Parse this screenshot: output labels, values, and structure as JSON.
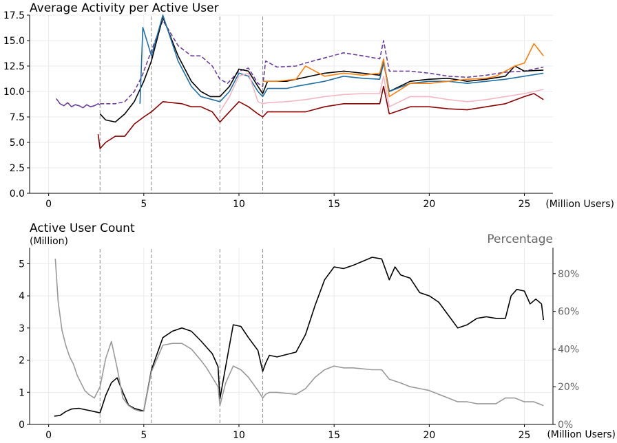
{
  "chart_data": [
    {
      "type": "line",
      "title": "Average Activity per Active User",
      "xlabel": "(Million Users)",
      "ylabel": "",
      "xlim": [
        -1,
        26.5
      ],
      "ylim": [
        0,
        17.5
      ],
      "xticks": [
        0,
        5,
        10,
        15,
        20,
        25
      ],
      "yticks": [
        0.0,
        2.5,
        5.0,
        7.5,
        10.0,
        12.5,
        15.0,
        17.5
      ],
      "ytick_labels": [
        "0.0",
        "2.5",
        "5.0",
        "7.5",
        "10.0",
        "12.5",
        "15.0",
        "17.5"
      ],
      "grid": true,
      "vertical_reference_lines_x": [
        2.7,
        5.4,
        9.0,
        11.25
      ],
      "series": [
        {
          "color": "#6a3d9a",
          "style": "solid",
          "x": [
            0.4,
            0.6,
            0.8,
            1.0,
            1.2,
            1.4,
            1.6,
            1.8,
            2.0,
            2.2,
            2.4,
            2.6,
            2.7
          ],
          "y": [
            9.3,
            8.8,
            8.6,
            8.9,
            8.5,
            8.7,
            8.6,
            8.4,
            8.7,
            8.5,
            8.6,
            8.8,
            8.7
          ]
        },
        {
          "color": "#6a3d9a",
          "style": "dashed",
          "x": [
            2.7,
            3.5,
            4.0,
            4.5,
            4.9,
            5.4,
            6.0,
            6.8,
            7.5,
            8.0,
            8.6,
            9.0,
            9.4,
            10.0,
            10.5,
            11.0,
            11.25,
            11.4,
            12.0,
            13.0,
            13.5,
            14.5,
            15.5,
            16.5,
            17.4,
            17.6,
            17.9,
            19.0,
            20.0,
            21.0,
            22.0,
            23.0,
            24.0,
            25.0,
            26.0
          ],
          "y": [
            8.8,
            8.8,
            9.0,
            10.0,
            11.5,
            14.0,
            17.0,
            14.5,
            13.5,
            13.5,
            12.5,
            11.2,
            10.8,
            12.0,
            12.3,
            10.8,
            10.5,
            13.0,
            12.4,
            12.5,
            12.8,
            13.3,
            13.8,
            13.5,
            13.2,
            15.0,
            12.0,
            12.0,
            11.8,
            11.5,
            11.4,
            11.6,
            11.9,
            12.0,
            12.4
          ]
        },
        {
          "color": "#000000",
          "style": "solid",
          "x": [
            2.7,
            3.0,
            3.5,
            4.0,
            4.5,
            5.0,
            5.4,
            6.0,
            6.8,
            7.5,
            8.0,
            8.5,
            9.0,
            9.5,
            10.0,
            10.5,
            11.0,
            11.25,
            11.5,
            12.5,
            13.0,
            14.5,
            15.5,
            16.5,
            17.4,
            17.6,
            17.9,
            19.0,
            20.0,
            21.0,
            22.0,
            23.0,
            24.0,
            24.5,
            25.0,
            26.0
          ],
          "y": [
            7.8,
            7.2,
            7.0,
            7.8,
            9.0,
            11.0,
            13.0,
            17.3,
            13.5,
            11.0,
            10.0,
            9.5,
            9.5,
            10.5,
            12.2,
            12.0,
            10.5,
            9.8,
            11.0,
            11.0,
            11.2,
            11.8,
            12.0,
            11.8,
            11.6,
            13.0,
            10.0,
            11.0,
            11.2,
            11.3,
            11.0,
            11.2,
            11.5,
            12.5,
            12.0,
            12.1
          ]
        },
        {
          "color": "#1f6fa5",
          "style": "solid",
          "x": [
            4.8,
            4.95,
            5.4,
            6.0,
            6.8,
            7.5,
            8.0,
            8.6,
            9.0,
            9.5,
            10.0,
            10.5,
            11.0,
            11.25,
            11.5,
            12.5,
            13.0,
            14.5,
            15.5,
            16.5,
            17.4,
            17.6,
            17.9,
            19.0,
            20.0,
            21.0,
            22.0,
            23.0,
            24.0,
            25.0,
            26.0
          ],
          "y": [
            8.8,
            16.3,
            13.5,
            17.5,
            13.0,
            10.5,
            9.5,
            9.2,
            9.0,
            10.0,
            11.8,
            11.5,
            10.0,
            9.5,
            10.3,
            10.3,
            10.5,
            11.0,
            11.5,
            11.3,
            11.2,
            12.8,
            10.0,
            10.8,
            11.0,
            11.0,
            10.8,
            11.0,
            11.2,
            11.5,
            11.8
          ]
        },
        {
          "color": "#ff7f0e",
          "style": "solid",
          "x": [
            11.25,
            12.0,
            13.0,
            13.5,
            14.5,
            15.5,
            16.5,
            17.4,
            17.6,
            17.9,
            19.0,
            20.0,
            21.0,
            22.0,
            23.0,
            23.5,
            24.0,
            24.5,
            25.0,
            25.5,
            26.0
          ],
          "y": [
            11.0,
            11.0,
            11.2,
            12.5,
            11.5,
            11.8,
            11.6,
            11.8,
            13.2,
            9.5,
            10.8,
            10.8,
            11.0,
            11.2,
            11.3,
            11.5,
            12.0,
            12.5,
            12.8,
            14.7,
            13.5
          ]
        },
        {
          "color": "#f4b6c2",
          "style": "solid",
          "x": [
            9.0,
            9.5,
            10.0,
            10.5,
            11.0,
            11.25,
            11.5,
            12.5,
            13.5,
            14.5,
            15.5,
            16.5,
            17.4,
            17.6,
            17.9,
            19.0,
            20.0,
            21.0,
            22.0,
            23.0,
            24.0,
            25.0,
            26.0
          ],
          "y": [
            8.0,
            9.5,
            11.5,
            11.8,
            9.0,
            8.8,
            8.9,
            9.0,
            9.2,
            9.5,
            9.7,
            9.8,
            9.8,
            11.5,
            8.5,
            9.5,
            9.5,
            9.2,
            9.0,
            9.2,
            9.5,
            9.8,
            10.2
          ]
        },
        {
          "color": "#8b0000",
          "style": "solid",
          "x": [
            2.6,
            2.7,
            3.0,
            3.5,
            4.0,
            4.5,
            5.0,
            5.4,
            6.0,
            7.0,
            7.5,
            8.0,
            8.6,
            9.0,
            9.5,
            10.0,
            10.5,
            11.0,
            11.25,
            11.5,
            12.5,
            13.5,
            14.5,
            15.5,
            16.5,
            17.4,
            17.6,
            17.9,
            19.0,
            20.0,
            21.0,
            22.0,
            23.0,
            24.0,
            25.0,
            25.5,
            26.0
          ],
          "y": [
            5.8,
            4.4,
            5.0,
            5.6,
            5.6,
            6.8,
            7.5,
            8.0,
            9.0,
            8.8,
            8.5,
            8.5,
            8.0,
            7.0,
            8.0,
            9.0,
            8.5,
            7.8,
            7.5,
            8.0,
            8.0,
            8.0,
            8.5,
            8.8,
            8.8,
            8.8,
            10.5,
            7.8,
            8.5,
            8.5,
            8.3,
            8.2,
            8.5,
            8.8,
            9.5,
            9.8,
            9.2
          ]
        }
      ]
    },
    {
      "type": "line",
      "title": "Active User Count",
      "subtitle": "(Million)",
      "xlabel": "(Million Users)",
      "ylabel": "",
      "xlim": [
        -1,
        26.5
      ],
      "ylim": [
        0,
        5.5
      ],
      "xticks": [
        0,
        5,
        10,
        15,
        20,
        25
      ],
      "yticks": [
        0,
        1,
        2,
        3,
        4,
        5
      ],
      "secondary_axis": {
        "title": "Percentage",
        "ylim": [
          0,
          0.938
        ],
        "ticks": [
          0,
          0.2,
          0.4,
          0.6,
          0.8
        ],
        "tick_labels": [
          "0%",
          "20%",
          "40%",
          "60%",
          "80%"
        ]
      },
      "grid": true,
      "vertical_reference_lines_x": [
        2.7,
        5.4,
        9.0,
        11.25
      ],
      "series": [
        {
          "color": "#000000",
          "axis": "left",
          "x": [
            0.3,
            0.6,
            0.9,
            1.2,
            1.6,
            2.0,
            2.4,
            2.7,
            3.0,
            3.3,
            3.6,
            3.9,
            4.2,
            4.5,
            4.8,
            5.0,
            5.4,
            6.0,
            6.5,
            7.0,
            7.5,
            8.0,
            8.3,
            8.6,
            8.9,
            9.0,
            9.3,
            9.7,
            10.1,
            10.5,
            11.0,
            11.25,
            11.4,
            11.6,
            12.0,
            13.0,
            13.5,
            14.0,
            14.5,
            15.0,
            15.5,
            16.0,
            17.0,
            17.5,
            17.9,
            18.2,
            18.5,
            19.0,
            19.5,
            20.0,
            20.5,
            21.0,
            21.5,
            22.0,
            22.5,
            23.0,
            23.5,
            24.0,
            24.3,
            24.6,
            25.0,
            25.3,
            25.6,
            25.9,
            26.0
          ],
          "y": [
            0.26,
            0.28,
            0.4,
            0.48,
            0.5,
            0.45,
            0.4,
            0.36,
            0.9,
            1.3,
            1.45,
            1.0,
            0.6,
            0.5,
            0.45,
            0.42,
            1.7,
            2.7,
            2.9,
            3.0,
            2.9,
            2.6,
            2.4,
            2.2,
            1.8,
            0.8,
            1.8,
            3.1,
            3.05,
            2.7,
            2.3,
            1.65,
            1.9,
            2.15,
            2.1,
            2.25,
            2.8,
            3.7,
            4.5,
            4.9,
            4.85,
            4.95,
            5.2,
            5.15,
            4.5,
            4.9,
            4.65,
            4.55,
            4.1,
            4.0,
            3.8,
            3.4,
            3.0,
            3.1,
            3.3,
            3.35,
            3.3,
            3.3,
            4.0,
            4.2,
            4.15,
            3.75,
            3.9,
            3.75,
            3.25
          ]
        },
        {
          "color": "#999999",
          "axis": "right",
          "x": [
            0.35,
            0.5,
            0.7,
            0.9,
            1.1,
            1.3,
            1.5,
            1.7,
            1.9,
            2.1,
            2.4,
            2.7,
            3.0,
            3.3,
            3.6,
            3.9,
            4.2,
            4.5,
            4.8,
            5.0,
            5.4,
            6.0,
            6.5,
            7.0,
            7.5,
            8.0,
            8.3,
            8.6,
            8.9,
            9.0,
            9.3,
            9.7,
            10.1,
            10.5,
            11.0,
            11.25,
            11.4,
            11.6,
            12.0,
            13.0,
            13.5,
            14.0,
            14.5,
            15.0,
            15.5,
            16.0,
            17.0,
            17.5,
            17.9,
            18.5,
            19.0,
            19.5,
            20.0,
            20.5,
            21.0,
            21.5,
            22.0,
            22.5,
            23.0,
            23.5,
            24.0,
            24.5,
            25.0,
            25.5,
            26.0
          ],
          "y": [
            0.88,
            0.65,
            0.5,
            0.42,
            0.36,
            0.32,
            0.26,
            0.22,
            0.18,
            0.16,
            0.14,
            0.2,
            0.35,
            0.44,
            0.3,
            0.14,
            0.1,
            0.08,
            0.07,
            0.07,
            0.28,
            0.42,
            0.43,
            0.43,
            0.4,
            0.34,
            0.3,
            0.25,
            0.2,
            0.1,
            0.22,
            0.31,
            0.29,
            0.25,
            0.18,
            0.14,
            0.16,
            0.17,
            0.17,
            0.16,
            0.19,
            0.25,
            0.29,
            0.31,
            0.3,
            0.3,
            0.29,
            0.29,
            0.24,
            0.22,
            0.2,
            0.19,
            0.18,
            0.16,
            0.14,
            0.12,
            0.12,
            0.11,
            0.11,
            0.11,
            0.14,
            0.14,
            0.12,
            0.12,
            0.1
          ]
        }
      ]
    }
  ]
}
